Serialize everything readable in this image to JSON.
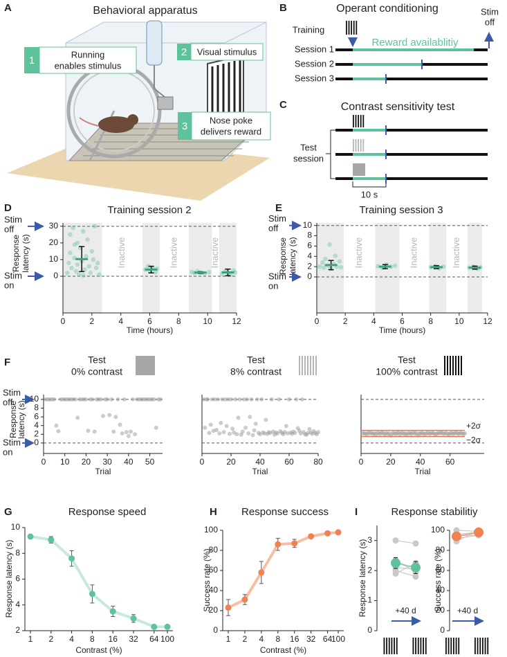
{
  "apparatus": {
    "panel": "A",
    "title": "Behavioral apparatus",
    "steps": [
      {
        "number": "1",
        "text": [
          "Running",
          "enables stimulus"
        ]
      },
      {
        "number": "2",
        "text": [
          "Visual stimulus"
        ]
      },
      {
        "number": "3",
        "text": [
          "Nose poke",
          "delivers reward"
        ]
      }
    ]
  },
  "operant": {
    "panel": "B",
    "title": "Operant conditioning",
    "training": "Training",
    "stim_off": [
      "Stim",
      "off"
    ],
    "reward": "Reward availablitiy",
    "sessions": [
      "Session 1",
      "Session 2",
      "Session 3"
    ]
  },
  "contrast_test": {
    "panel": "C",
    "title": "Contrast sensitivity test",
    "test_session": [
      "Test",
      "session"
    ],
    "duration": "10 s"
  },
  "chart_data": [
    {
      "type": "scatter",
      "panel": "D",
      "title": [
        "Training session 2"
      ],
      "xlabel": "Time (hours)",
      "ylabel": [
        "Response",
        "latency (s)"
      ],
      "xlim": [
        0,
        12
      ],
      "xticks": [
        0,
        2,
        4,
        6,
        8,
        10,
        12
      ],
      "ylim": [
        -22,
        32
      ],
      "yticks": [
        0,
        10,
        20,
        30
      ],
      "stim_off": [
        "Stim",
        "off"
      ],
      "stim_on": [
        "Stim",
        "on"
      ],
      "stim_off_value": 30,
      "stim_on_value": 0,
      "inactive_label": "Inactive",
      "active_periods": [
        [
          0,
          2.7
        ],
        [
          5.5,
          6.7
        ],
        [
          8.7,
          10.3
        ],
        [
          10.8,
          12
        ]
      ],
      "color": "#5ec29a",
      "points_x": [
        0.3,
        0.4,
        0.5,
        0.5,
        0.6,
        0.7,
        0.8,
        0.9,
        1.0,
        1.0,
        1.1,
        1.2,
        1.3,
        1.4,
        1.5,
        1.6,
        1.7,
        1.8,
        1.9,
        2.0,
        2.1,
        2.2,
        2.3,
        2.4,
        2.5,
        1.4,
        0.8,
        5.7,
        5.9,
        6.0,
        6.2,
        6.4,
        6.5,
        8.9,
        9.1,
        9.3,
        9.5,
        9.8,
        10.1,
        11.0,
        11.2,
        11.4,
        11.6,
        11.8,
        11.9
      ],
      "points_y": [
        2,
        8,
        25,
        14,
        5,
        29,
        11,
        3,
        20,
        7,
        1,
        17,
        9,
        27,
        4,
        12,
        22,
        6,
        2,
        15,
        10,
        30,
        5,
        8,
        1,
        0.5,
        19,
        4,
        6,
        3,
        5,
        2.5,
        4.5,
        2.5,
        2,
        3,
        2.2,
        1.8,
        2.4,
        1.5,
        3,
        2,
        0.8,
        3.5,
        2.2
      ],
      "means": {
        "x": [
          1.3,
          6.1,
          9.5,
          11.4
        ],
        "values": [
          10.3,
          4.0,
          2.2,
          2.3
        ],
        "errors": [
          7.5,
          2.0,
          0.5,
          2.0
        ]
      }
    },
    {
      "type": "scatter",
      "panel": "E",
      "title": [
        "Training session 3"
      ],
      "xlabel": "Time (hours)",
      "ylabel": [
        "Response",
        "latency (s)"
      ],
      "xlim": [
        0,
        12
      ],
      "xticks": [
        0,
        2,
        4,
        6,
        8,
        10,
        12
      ],
      "ylim": [
        -7,
        10.5
      ],
      "yticks": [
        0,
        2,
        4,
        6,
        8,
        10
      ],
      "stim_off": [
        "Stim",
        "off"
      ],
      "stim_on": [
        "Stim",
        "on"
      ],
      "stim_off_value": 10,
      "stim_on_value": 0,
      "inactive_label": "Inactive",
      "active_periods": [
        [
          0,
          1.9
        ],
        [
          4.1,
          5.8
        ],
        [
          7.9,
          9.1
        ],
        [
          10.6,
          11.6
        ]
      ],
      "color": "#5ec29a",
      "points_x": [
        0.2,
        0.4,
        0.5,
        0.6,
        0.8,
        0.9,
        1.0,
        1.2,
        1.3,
        1.4,
        1.6,
        1.7,
        4.3,
        4.6,
        4.9,
        5.2,
        5.5,
        8.0,
        8.3,
        8.6,
        8.9,
        10.7,
        11.0,
        11.3,
        11.5
      ],
      "points_y": [
        2.0,
        2.8,
        1.8,
        3.5,
        2.2,
        6.3,
        1.6,
        2.5,
        4.1,
        2.0,
        3.0,
        1.9,
        2.1,
        1.8,
        2.4,
        2.0,
        2.2,
        1.9,
        2.1,
        1.7,
        2.0,
        1.8,
        2.0,
        1.6,
        1.9
      ],
      "means": {
        "x": [
          1.0,
          4.8,
          8.4,
          11.1
        ],
        "values": [
          2.3,
          2.0,
          1.9,
          1.8
        ],
        "errors": [
          0.9,
          0.4,
          0.3,
          0.3
        ]
      }
    },
    {
      "type": "scatter",
      "panel": "F",
      "title": [
        "Test",
        "0% contrast"
      ],
      "xlabel": "Trial",
      "ylabel": [
        "Response",
        "latency (s)"
      ],
      "xlim": [
        0,
        56
      ],
      "xticks": [
        0,
        10,
        20,
        30,
        40,
        50
      ],
      "ylim": [
        -2.4,
        11.1
      ],
      "yticks": [
        0,
        2,
        4,
        6,
        8,
        10
      ],
      "stim_off": [
        "Stim",
        "off"
      ],
      "stim_on": [
        "Stim",
        "on"
      ],
      "stim_off_value": 10,
      "stim_on_value": 0,
      "color": "#999999",
      "x": [
        1,
        2,
        3,
        4,
        5,
        6,
        7,
        8,
        9,
        10,
        11,
        12,
        13,
        14,
        15,
        16,
        17,
        18,
        19,
        20,
        21,
        22,
        23,
        24,
        25,
        26,
        27,
        28,
        29,
        30,
        31,
        32,
        33,
        34,
        35,
        36,
        37,
        38,
        39,
        40,
        41,
        42,
        43,
        44,
        45,
        46,
        47,
        48,
        49,
        50,
        51,
        52,
        53,
        54,
        55
      ],
      "values": [
        10,
        10,
        10,
        10,
        10,
        4,
        2.7,
        10,
        10,
        10,
        10,
        10,
        10,
        10,
        10,
        5.8,
        10,
        10,
        10,
        10,
        2.8,
        10,
        10,
        2.6,
        10,
        10,
        10,
        6.2,
        10,
        10,
        6.4,
        10,
        2.6,
        6,
        10,
        4.2,
        2.2,
        10,
        2.5,
        1.6,
        2.6,
        10,
        2,
        10,
        10,
        10,
        10,
        10,
        10,
        10,
        10,
        10,
        3.5,
        10,
        10
      ]
    },
    {
      "type": "scatter",
      "title": [
        "Test",
        "8% contrast"
      ],
      "xlabel": "Trial",
      "xlim": [
        0,
        80
      ],
      "xticks": [
        0,
        20,
        40,
        60,
        80
      ],
      "ylim": [
        -2.4,
        11.1
      ],
      "stim_off_value": 10,
      "stim_on_value": 0,
      "color": "#999999",
      "x": [
        1,
        2,
        3,
        4,
        5,
        6,
        7,
        8,
        9,
        10,
        11,
        12,
        13,
        14,
        15,
        16,
        17,
        18,
        19,
        20,
        21,
        22,
        23,
        24,
        25,
        26,
        27,
        28,
        29,
        30,
        31,
        32,
        33,
        34,
        35,
        36,
        37,
        38,
        39,
        40,
        41,
        42,
        43,
        44,
        45,
        46,
        47,
        48,
        49,
        50,
        51,
        52,
        53,
        54,
        55,
        56,
        57,
        58,
        59,
        60,
        61,
        62,
        63,
        64,
        65,
        66,
        67,
        68,
        69,
        70,
        71,
        72,
        73,
        74,
        75,
        76,
        77,
        78,
        79,
        80
      ],
      "values": [
        10,
        3.5,
        10,
        10,
        2.3,
        4.2,
        10,
        2.8,
        10,
        3.0,
        10,
        2.2,
        4.6,
        10,
        2.5,
        10,
        3.9,
        10,
        2.1,
        10,
        3.3,
        2.4,
        10,
        2.0,
        5.8,
        10,
        1.9,
        2.6,
        10,
        3.5,
        10,
        2.2,
        6.0,
        10,
        1.8,
        2.9,
        4.4,
        10,
        2.3,
        2.0,
        10,
        2.4,
        2.2,
        5.3,
        2.1,
        2.5,
        2.3,
        10,
        2.6,
        1.9,
        2.4,
        2.2,
        10,
        2.7,
        2.3,
        2.0,
        2.5,
        3.9,
        2.2,
        10,
        2.4,
        2.1,
        2.6,
        2.3,
        10,
        3.4,
        2.8,
        2.2,
        10,
        2.5,
        2.0,
        1.9,
        2.3,
        3.2,
        2.4,
        2.1,
        2.7,
        2.3,
        2.0,
        2.5
      ]
    },
    {
      "type": "scatter",
      "title": [
        "Test",
        "100% contrast"
      ],
      "xlabel": "Trial",
      "xlim": [
        0,
        83
      ],
      "xticks": [
        0,
        20,
        40,
        60
      ],
      "ylim": [
        -2.4,
        11.1
      ],
      "stim_off_value": 10,
      "stim_on_value": 0,
      "color": "#999999",
      "bounds": [
        {
          "value": 2.9,
          "label": "+2σ"
        },
        {
          "value": 1.5,
          "label": "−2σ"
        }
      ],
      "bound_color": "#e8734a",
      "x": [
        1,
        2,
        3,
        4,
        5,
        6,
        7,
        8,
        9,
        10,
        11,
        12,
        13,
        14,
        15,
        16,
        17,
        18,
        19,
        20,
        21,
        22,
        23,
        24,
        25,
        26,
        27,
        28,
        29,
        30,
        31,
        32,
        33,
        34,
        35,
        36,
        37,
        38,
        39,
        40,
        41,
        42,
        43,
        44,
        45,
        46,
        47,
        48,
        49,
        50,
        51,
        52,
        53,
        54,
        55,
        56,
        57,
        58,
        59,
        60,
        61,
        62,
        63,
        64,
        65,
        66,
        67,
        68,
        69,
        70
      ],
      "values": [
        2.2,
        2.3,
        2.1,
        2.0,
        2.4,
        2.2,
        2.3,
        2.1,
        2.2,
        2.0,
        2.3,
        2.2,
        2.1,
        2.4,
        2.2,
        2.0,
        2.3,
        2.1,
        2.2,
        1.7,
        2.2,
        2.3,
        2.1,
        2.2,
        2.4,
        2.0,
        2.2,
        2.3,
        2.1,
        2.2,
        2.0,
        2.3,
        2.2,
        2.1,
        2.4,
        2.2,
        2.3,
        1.8,
        2.2,
        2.1,
        2.3,
        2.2,
        2.0,
        2.2,
        2.4,
        2.1,
        2.2,
        2.3,
        2.2,
        2.0,
        2.1,
        2.3,
        2.2,
        2.4,
        2.2,
        2.1,
        2.3,
        2.2,
        2.0,
        2.2,
        2.3,
        2.1,
        2.2,
        2.4,
        2.2,
        2.1,
        2.3,
        2.2,
        2.1,
        2.2
      ]
    },
    {
      "type": "line",
      "panel": "G",
      "title": [
        "Response speed"
      ],
      "xlabel": "Contrast (%)",
      "ylabel": [
        "Response latency (s)"
      ],
      "xscale": "log",
      "xlim": [
        1,
        100
      ],
      "xticks": [
        1,
        2,
        4,
        8,
        16,
        32,
        64,
        100
      ],
      "ylim": [
        2,
        10
      ],
      "yticks": [
        2,
        4,
        6,
        8,
        10
      ],
      "x": [
        1,
        2,
        4,
        8,
        16,
        32,
        64,
        100
      ],
      "values": [
        9.3,
        9.05,
        7.6,
        4.85,
        3.5,
        2.95,
        2.3,
        2.3
      ],
      "errors": [
        0.1,
        0.25,
        0.6,
        0.7,
        0.4,
        0.3,
        0.1,
        0.1
      ],
      "color": "#5ec29a",
      "line_color": "#c4ead9"
    },
    {
      "type": "line",
      "panel": "H",
      "title": [
        "Response success"
      ],
      "xlabel": "Contrast (%)",
      "ylabel": [
        "Success rate (%)"
      ],
      "xscale": "log",
      "xlim": [
        1,
        100
      ],
      "xticks": [
        1,
        2,
        4,
        8,
        16,
        32,
        64,
        100
      ],
      "ylim": [
        0,
        100
      ],
      "yticks": [
        0,
        20,
        40,
        60,
        80,
        100
      ],
      "x": [
        1,
        2,
        4,
        8,
        16,
        32,
        64,
        100
      ],
      "values": [
        23,
        31,
        58,
        86,
        87,
        94,
        97,
        98
      ],
      "errors": [
        8,
        5,
        11,
        6,
        4,
        2,
        1,
        1
      ],
      "color": "#f08150",
      "line_color": "#f7bea3"
    },
    {
      "type": "paired",
      "panel": "I",
      "title": [
        "Response stabilitiy"
      ],
      "ylabel": [
        "Response latency (s)"
      ],
      "interval_label": "+40 d",
      "categories": [
        null,
        null
      ],
      "ylim": [
        0,
        3.5
      ],
      "yticks": [
        0,
        1,
        2,
        3
      ],
      "color": "#5ec29a",
      "individuals": [
        [
          3.0,
          2.9
        ],
        [
          2.35,
          1.95
        ],
        [
          2.1,
          2.05
        ],
        [
          2.0,
          1.8
        ],
        [
          1.9,
          2.25
        ]
      ],
      "means": {
        "values": [
          2.25,
          2.1
        ],
        "errors": [
          0.18,
          0.2
        ]
      }
    },
    {
      "type": "paired",
      "ylabel": [
        "Success rate (%)"
      ],
      "interval_label": "+40 d",
      "categories": [
        null,
        null
      ],
      "ylim": [
        0,
        100
      ],
      "yticks": [
        0,
        20,
        40,
        60,
        80,
        100
      ],
      "color": "#f08150",
      "individuals": [
        [
          100,
          99
        ],
        [
          96,
          98
        ],
        [
          92,
          95
        ],
        [
          89,
          100
        ],
        [
          95,
          95
        ]
      ],
      "means": {
        "values": [
          94,
          98
        ],
        "errors": [
          4,
          3
        ]
      }
    }
  ]
}
